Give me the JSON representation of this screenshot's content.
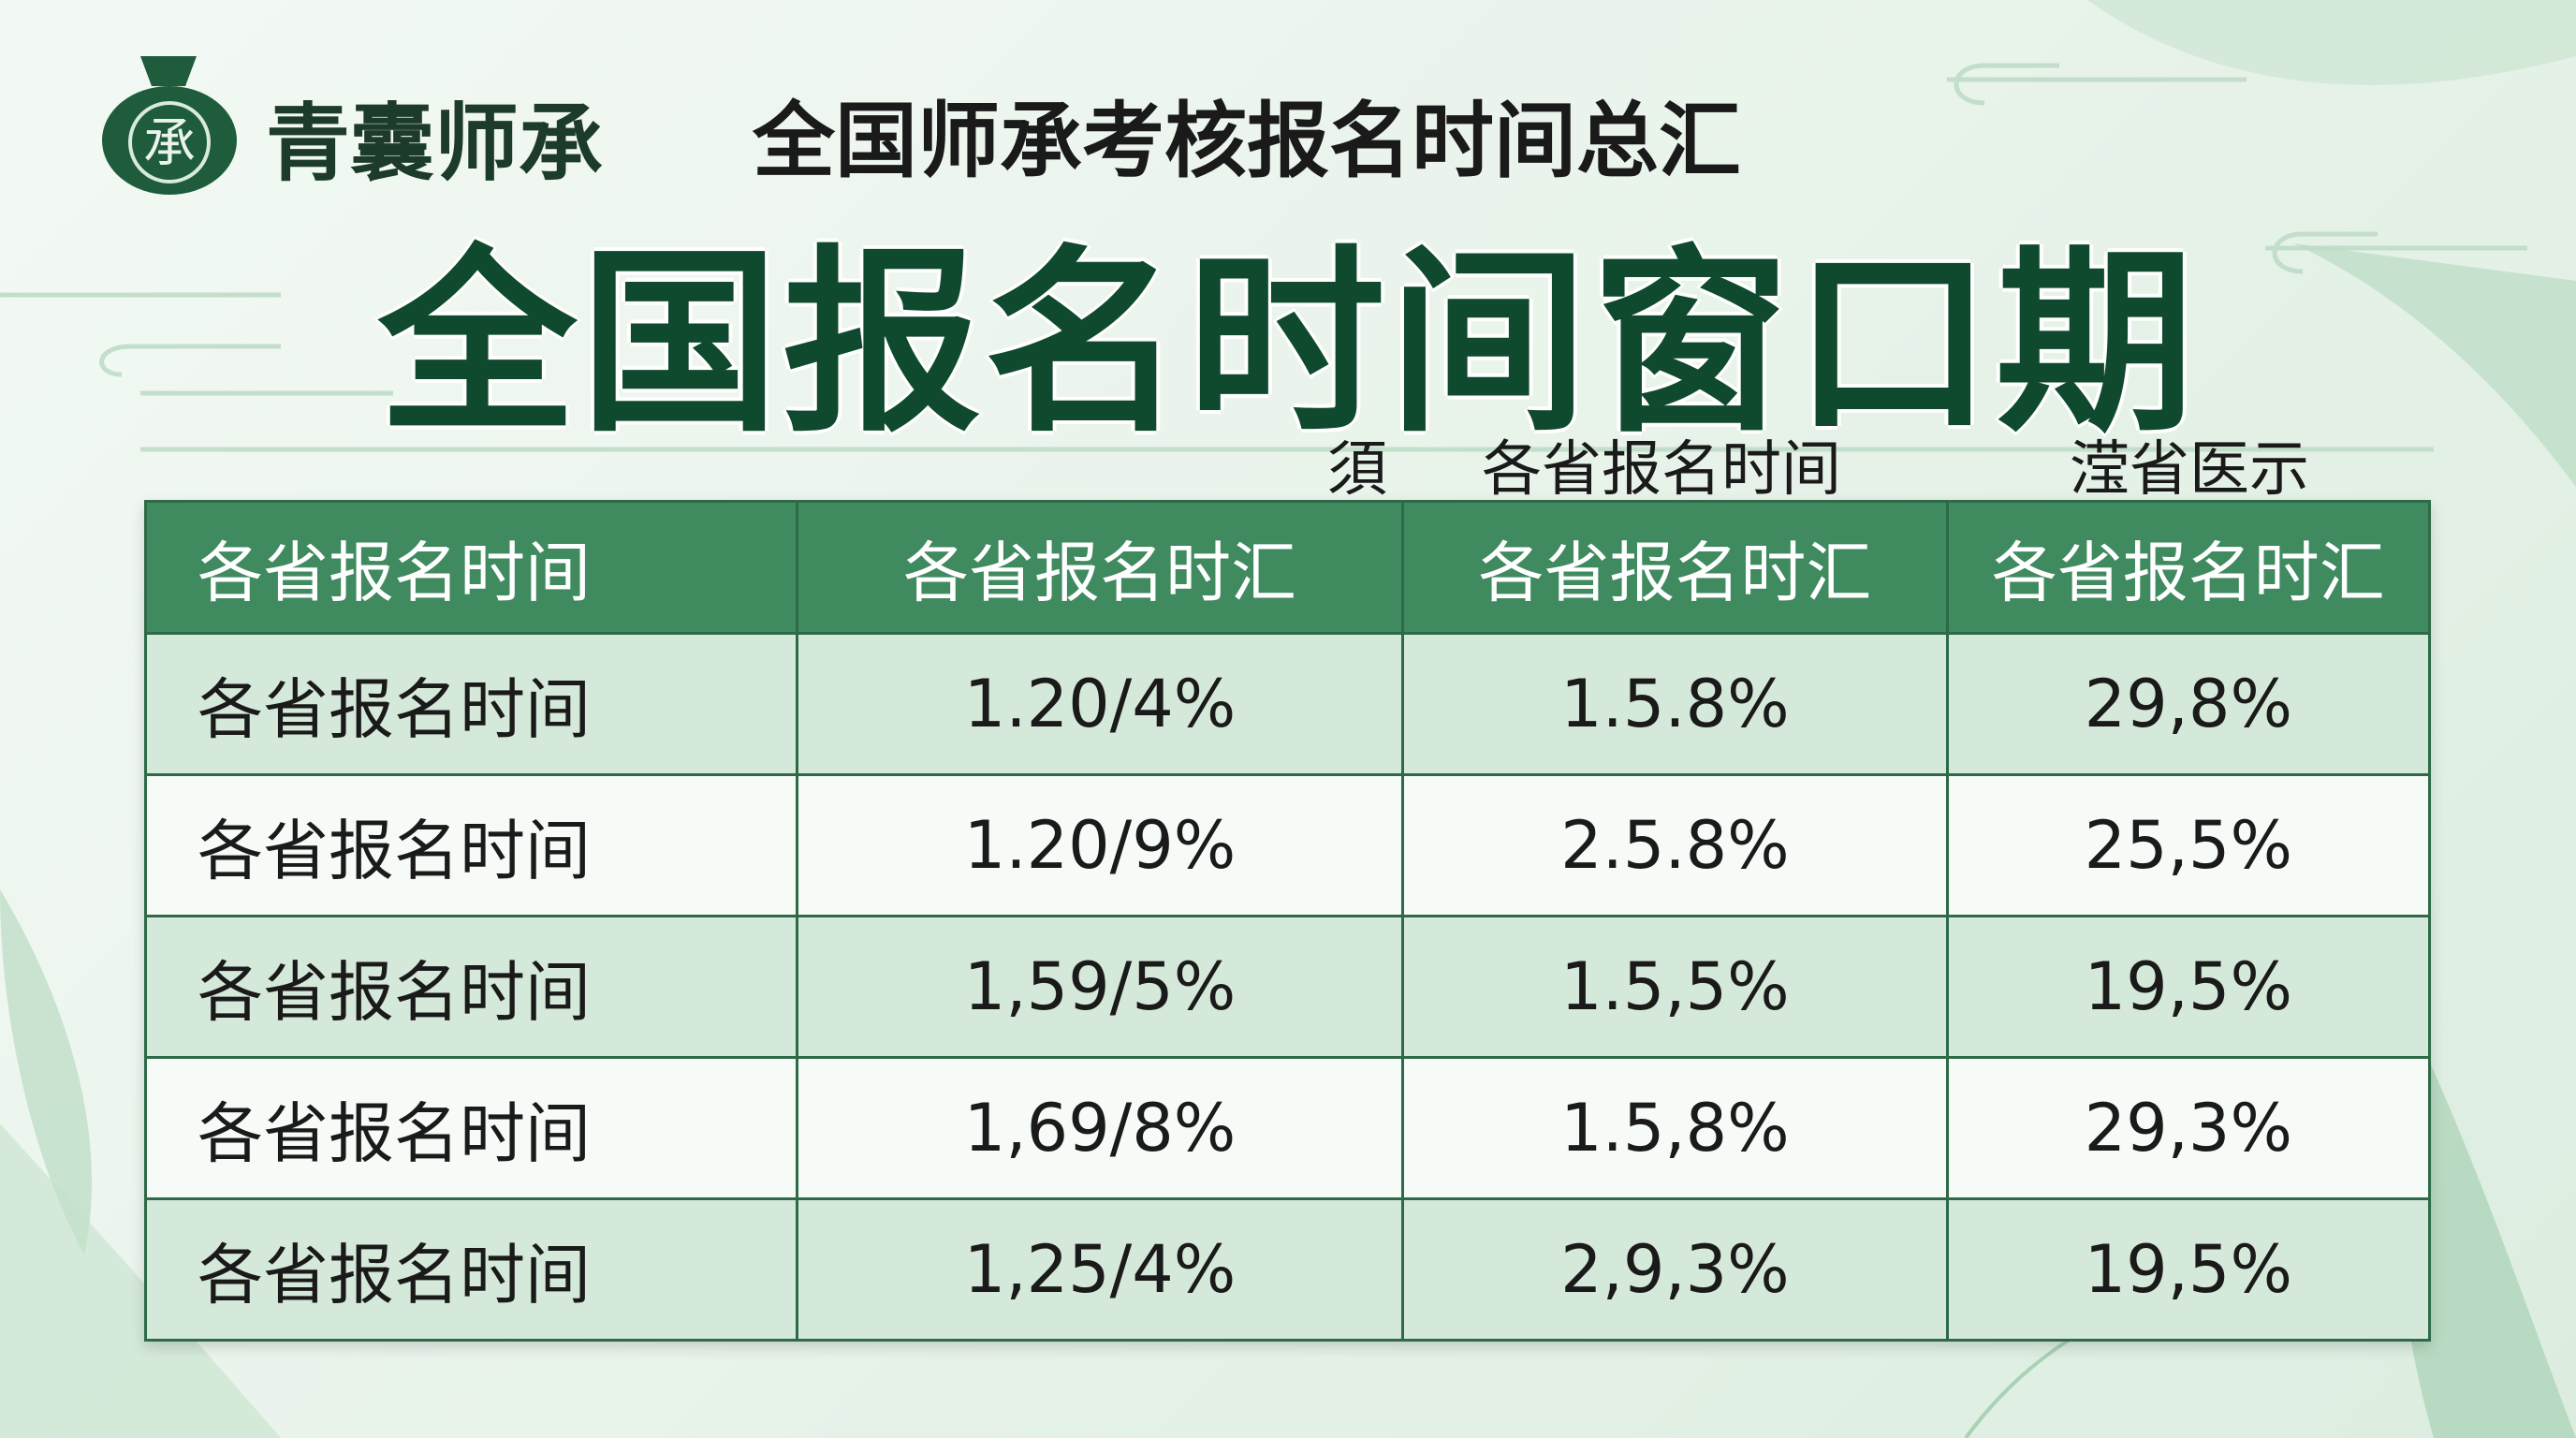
{
  "header": {
    "logo": "承",
    "brand": "青囊师承",
    "subtitle": "全国师承考核报名时间总汇"
  },
  "title": "全国报名时间窗口期",
  "labels": [
    "須",
    "各省报名时间",
    "滢省医示"
  ],
  "table": {
    "columns": [
      "各省报名时间",
      "各省报名时汇",
      "各省报名时汇",
      "各省报名时汇"
    ],
    "rows": [
      [
        "各省报名时间",
        "1.20/4%",
        "1.5.8%",
        "29,8%"
      ],
      [
        "各省报名时间",
        "1.20/9%",
        "2.5.8%",
        "25,5%"
      ],
      [
        "各省报名时间",
        "1,59/5%",
        "1.5,5%",
        "19,5%"
      ],
      [
        "各省报名时间",
        "1,69/8%",
        "1.5,8%",
        "29,3%"
      ],
      [
        "各省报名时间",
        "1,25/4%",
        "2,9,3%",
        "19,5%"
      ]
    ]
  }
}
